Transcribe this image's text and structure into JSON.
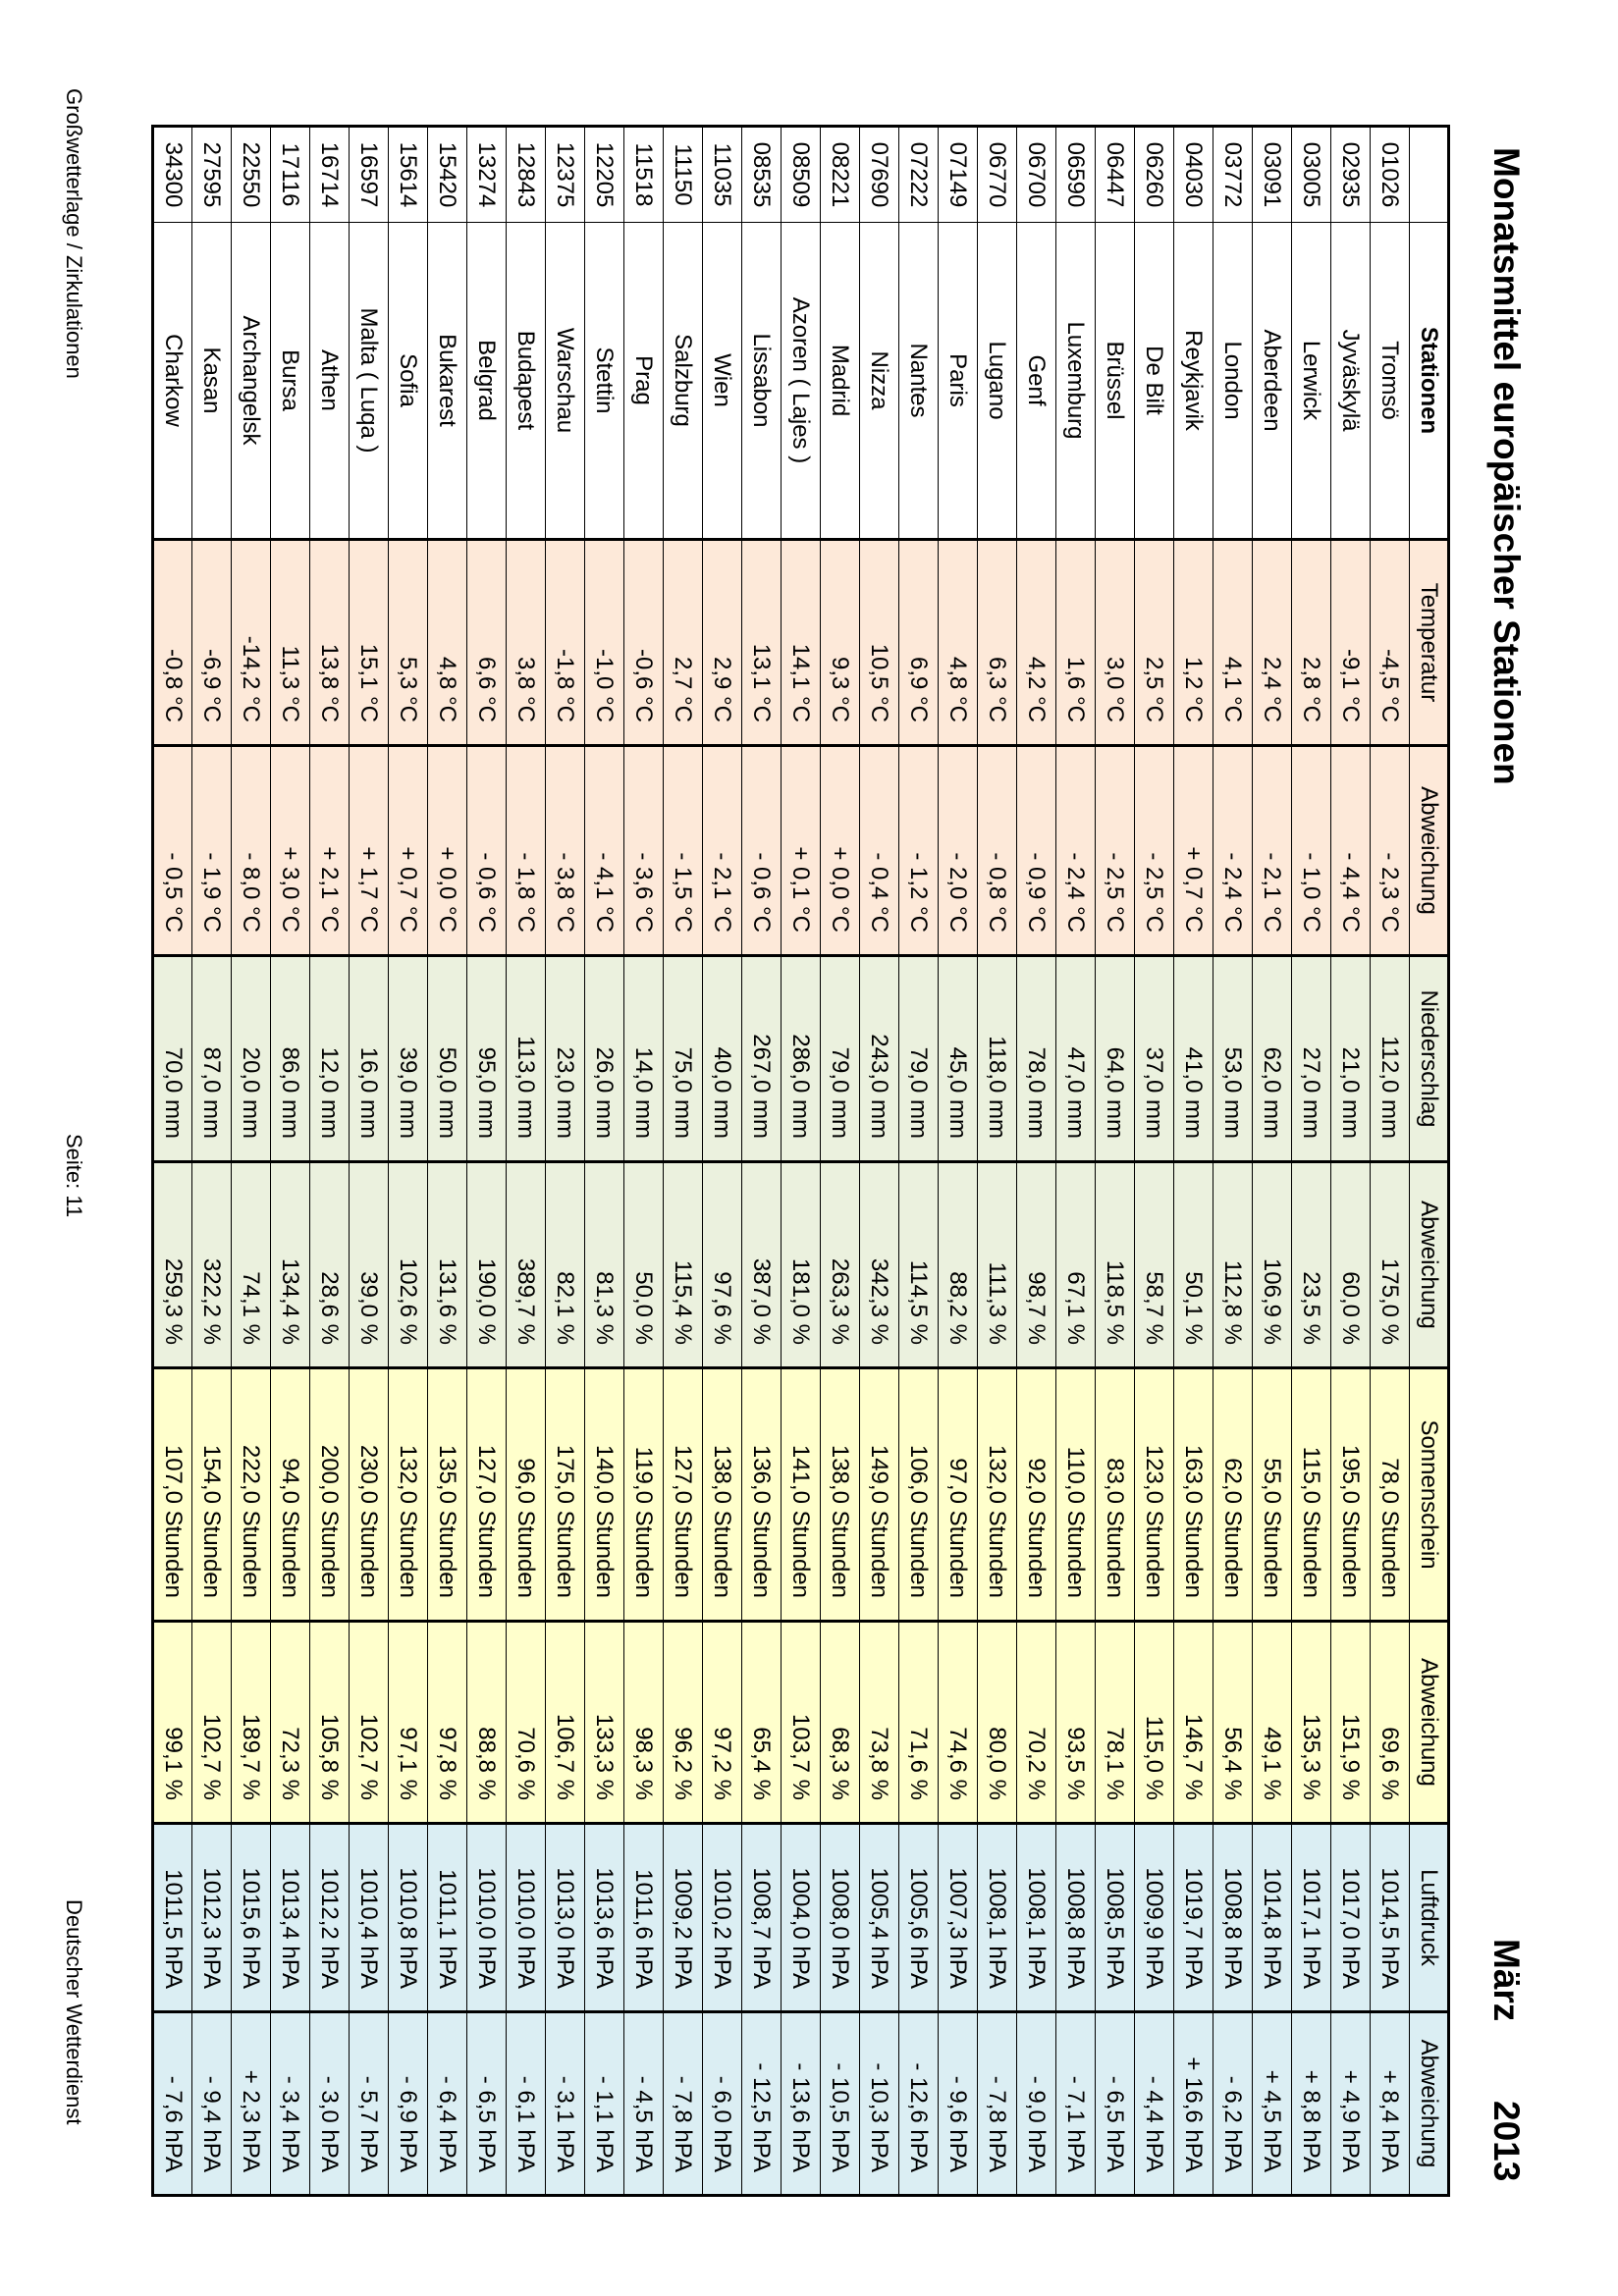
{
  "title": "Monatsmittel europäischer Stationen",
  "month": "März",
  "year": "2013",
  "colors": {
    "temperature": "#fde9d9",
    "precipitation": "#ebf1de",
    "sunshine": "#ffffcc",
    "pressure": "#dbeef3"
  },
  "headers": [
    "",
    "Stationen",
    "Temperatur",
    "Abweichung",
    "Niederschlag",
    "Abweichung",
    "Sonnenschein",
    "Abweichung",
    "Luftdruck",
    "Abweichung"
  ],
  "rows": [
    [
      "01026",
      "Tromsö",
      "-4,5 °C",
      "- 2,3 °C",
      "112,0 mm",
      "175,0 %",
      "78,0 Stunden",
      "69,6 %",
      "1014,5 hPA",
      "+ 8,4 hPA"
    ],
    [
      "02935",
      "Jyväskylä",
      "-9,1 °C",
      "- 4,4 °C",
      "21,0 mm",
      "60,0 %",
      "195,0 Stunden",
      "151,9 %",
      "1017,0 hPA",
      "+ 4,9 hPA"
    ],
    [
      "03005",
      "Lerwick",
      "2,8 °C",
      "- 1,0 °C",
      "27,0 mm",
      "23,5 %",
      "115,0 Stunden",
      "135,3 %",
      "1017,1 hPA",
      "+ 8,8 hPA"
    ],
    [
      "03091",
      "Aberdeen",
      "2,4 °C",
      "- 2,1 °C",
      "62,0 mm",
      "106,9 %",
      "55,0 Stunden",
      "49,1 %",
      "1014,8 hPA",
      "+ 4,5 hPA"
    ],
    [
      "03772",
      "London",
      "4,1 °C",
      "- 2,4 °C",
      "53,0 mm",
      "112,8 %",
      "62,0 Stunden",
      "56,4 %",
      "1008,8 hPA",
      "- 6,2 hPA"
    ],
    [
      "04030",
      "Reykjavik",
      "1,2 °C",
      "+ 0,7 °C",
      "41,0 mm",
      "50,1 %",
      "163,0 Stunden",
      "146,7 %",
      "1019,7 hPA",
      "+ 16,6 hPA"
    ],
    [
      "06260",
      "De Bilt",
      "2,5 °C",
      "- 2,5 °C",
      "37,0 mm",
      "58,7 %",
      "123,0 Stunden",
      "115,0 %",
      "1009,9 hPA",
      "- 4,4 hPA"
    ],
    [
      "06447",
      "Brüssel",
      "3,0 °C",
      "- 2,5 °C",
      "64,0 mm",
      "118,5 %",
      "83,0 Stunden",
      "78,1 %",
      "1008,5 hPA",
      "- 6,5 hPA"
    ],
    [
      "06590",
      "Luxemburg",
      "1,6 °C",
      "- 2,4 °C",
      "47,0 mm",
      "67,1 %",
      "110,0 Stunden",
      "93,5 %",
      "1008,8 hPA",
      "- 7,1 hPA"
    ],
    [
      "06700",
      "Genf",
      "4,2 °C",
      "- 0,9 °C",
      "78,0 mm",
      "98,7 %",
      "92,0 Stunden",
      "70,2 %",
      "1008,1 hPA",
      "- 9,0 hPA"
    ],
    [
      "06770",
      "Lugano",
      "6,3 °C",
      "- 0,8 °C",
      "118,0 mm",
      "111,3 %",
      "132,0 Stunden",
      "80,0 %",
      "1008,1 hPA",
      "- 7,8 hPA"
    ],
    [
      "07149",
      "Paris",
      "4,8 °C",
      "- 2,0 °C",
      "45,0 mm",
      "88,2 %",
      "97,0 Stunden",
      "74,6 %",
      "1007,3 hPA",
      "- 9,6 hPA"
    ],
    [
      "07222",
      "Nantes",
      "6,9 °C",
      "- 1,2 °C",
      "79,0 mm",
      "114,5 %",
      "106,0 Stunden",
      "71,6 %",
      "1005,6 hPA",
      "- 12,6 hPA"
    ],
    [
      "07690",
      "Nizza",
      "10,5 °C",
      "- 0,4 °C",
      "243,0 mm",
      "342,3 %",
      "149,0 Stunden",
      "73,8 %",
      "1005,4 hPA",
      "- 10,3 hPA"
    ],
    [
      "08221",
      "Madrid",
      "9,3 °C",
      "+ 0,0 °C",
      "79,0 mm",
      "263,3 %",
      "138,0 Stunden",
      "68,3 %",
      "1008,0 hPA",
      "- 10,5 hPA"
    ],
    [
      "08509",
      "Azoren ( Lajes )",
      "14,1 °C",
      "+ 0,1 °C",
      "286,0 mm",
      "181,0 %",
      "141,0 Stunden",
      "103,7 %",
      "1004,0 hPA",
      "- 13,6 hPA"
    ],
    [
      "08535",
      "Lissabon",
      "13,1 °C",
      "- 0,6 °C",
      "267,0 mm",
      "387,0 %",
      "136,0 Stunden",
      "65,4 %",
      "1008,7 hPA",
      "- 12,5 hPA"
    ],
    [
      "11035",
      "Wien",
      "2,9 °C",
      "- 2,1 °C",
      "40,0 mm",
      "97,6 %",
      "138,0 Stunden",
      "97,2 %",
      "1010,2 hPA",
      "- 6,0 hPA"
    ],
    [
      "11150",
      "Salzburg",
      "2,7 °C",
      "- 1,5 °C",
      "75,0 mm",
      "115,4 %",
      "127,0 Stunden",
      "96,2 %",
      "1009,2 hPA",
      "- 7,8 hPA"
    ],
    [
      "11518",
      "Prag",
      "-0,6 °C",
      "- 3,6 °C",
      "14,0 mm",
      "50,0 %",
      "119,0 Stunden",
      "98,3 %",
      "1011,6 hPA",
      "- 4,5 hPA"
    ],
    [
      "12205",
      "Stettin",
      "-1,0 °C",
      "- 4,1 °C",
      "26,0 mm",
      "81,3 %",
      "140,0 Stunden",
      "133,3 %",
      "1013,6 hPA",
      "- 1,1 hPA"
    ],
    [
      "12375",
      "Warschau",
      "-1,8 °C",
      "- 3,8 °C",
      "23,0 mm",
      "82,1 %",
      "175,0 Stunden",
      "106,7 %",
      "1013,0 hPA",
      "- 3,1 hPA"
    ],
    [
      "12843",
      "Budapest",
      "3,8 °C",
      "- 1,8 °C",
      "113,0 mm",
      "389,7 %",
      "96,0 Stunden",
      "70,6 %",
      "1010,0 hPA",
      "- 6,1 hPA"
    ],
    [
      "13274",
      "Belgrad",
      "6,6 °C",
      "- 0,6 °C",
      "95,0 mm",
      "190,0 %",
      "127,0 Stunden",
      "88,8 %",
      "1010,0 hPA",
      "- 6,5 hPA"
    ],
    [
      "15420",
      "Bukarest",
      "4,8 °C",
      "+ 0,0 °C",
      "50,0 mm",
      "131,6 %",
      "135,0 Stunden",
      "97,8 %",
      "1011,1 hPA",
      "- 6,4 hPA"
    ],
    [
      "15614",
      "Sofia",
      "5,3 °C",
      "+ 0,7 °C",
      "39,0 mm",
      "102,6 %",
      "132,0 Stunden",
      "97,1 %",
      "1010,8 hPA",
      "- 6,9 hPA"
    ],
    [
      "16597",
      "Malta ( Luqa )",
      "15,1 °C",
      "+ 1,7 °C",
      "16,0 mm",
      "39,0 %",
      "230,0 Stunden",
      "102,7 %",
      "1010,4 hPA",
      "- 5,7 hPA"
    ],
    [
      "16714",
      "Athen",
      "13,8 °C",
      "+ 2,1 °C",
      "12,0 mm",
      "28,6 %",
      "200,0 Stunden",
      "105,8 %",
      "1012,2 hPA",
      "- 3,0 hPA"
    ],
    [
      "17116",
      "Bursa",
      "11,3 °C",
      "+ 3,0 °C",
      "86,0 mm",
      "134,4 %",
      "94,0 Stunden",
      "72,3 %",
      "1013,4 hPA",
      "- 3,4 hPA"
    ],
    [
      "22550",
      "Archangelsk",
      "-14,2 °C",
      "- 8,0 °C",
      "20,0 mm",
      "74,1 %",
      "222,0 Stunden",
      "189,7 %",
      "1015,6 hPA",
      "+ 2,3 hPA"
    ],
    [
      "27595",
      "Kasan",
      "-6,9 °C",
      "- 1,9 °C",
      "87,0 mm",
      "322,2 %",
      "154,0 Stunden",
      "102,7 %",
      "1012,3 hPA",
      "- 9,4 hPA"
    ],
    [
      "34300",
      "Charkow",
      "-0,8 °C",
      "- 0,5 °C",
      "70,0 mm",
      "259,3 %",
      "107,0 Stunden",
      "99,1 %",
      "1011,5 hPA",
      "- 7,6 hPA"
    ]
  ],
  "footer": {
    "left": "Großwetterlage / Zirkulationen",
    "center": "Seite: 11",
    "right": "Deutscher Wetterdienst"
  }
}
